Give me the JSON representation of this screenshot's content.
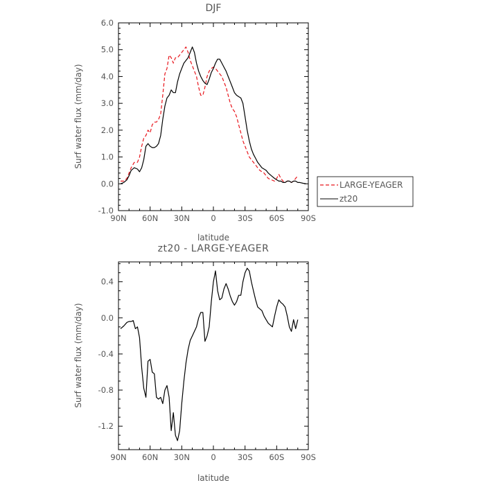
{
  "chart_data": [
    {
      "type": "line",
      "title": "DJF",
      "xlabel": "latitude",
      "ylabel": "Surf water flux (mm/day)",
      "xlim": [
        90,
        -90
      ],
      "ylim": [
        -1.0,
        6.0
      ],
      "x_ticks": [
        90,
        60,
        30,
        0,
        -30,
        -60,
        -90
      ],
      "x_tick_labels": [
        "90N",
        "60N",
        "30N",
        "0",
        "30S",
        "60S",
        "90S"
      ],
      "y_ticks": [
        -1.0,
        0.0,
        1.0,
        2.0,
        3.0,
        4.0,
        5.0,
        6.0
      ],
      "y_tick_labels": [
        "-1.0",
        "0.0",
        "1.0",
        "2.0",
        "3.0",
        "4.0",
        "5.0",
        "6.0"
      ],
      "legend_position": "right",
      "grid": false,
      "series": [
        {
          "name": "LARGE-YEAGER",
          "color": "#e8141b",
          "dash": "dashed",
          "x": [
            88,
            85,
            82,
            80,
            78,
            75,
            72,
            70,
            68,
            66,
            64,
            62,
            60,
            58,
            56,
            54,
            52,
            50,
            48,
            46,
            44,
            42,
            40,
            38,
            36,
            34,
            32,
            30,
            28,
            26,
            24,
            22,
            20,
            18,
            16,
            14,
            12,
            10,
            8,
            6,
            4,
            2,
            0,
            -2,
            -4,
            -6,
            -8,
            -10,
            -12,
            -14,
            -16,
            -18,
            -20,
            -22,
            -24,
            -26,
            -28,
            -30,
            -32,
            -34,
            -36,
            -38,
            -40,
            -42,
            -44,
            -46,
            -48,
            -50,
            -52,
            -55,
            -58,
            -60,
            -62,
            -64,
            -66,
            -68,
            -70,
            -72,
            -74,
            -76,
            -78,
            -80
          ],
          "y": [
            0.1,
            0.1,
            0.2,
            0.4,
            0.6,
            0.8,
            0.8,
            1.0,
            1.4,
            1.7,
            1.8,
            2.0,
            1.9,
            2.2,
            2.3,
            2.3,
            2.4,
            2.6,
            3.3,
            4.1,
            4.3,
            4.8,
            4.7,
            4.5,
            4.7,
            4.7,
            4.8,
            4.9,
            5.0,
            5.1,
            4.9,
            4.6,
            4.4,
            4.2,
            4.0,
            3.6,
            3.3,
            3.3,
            3.6,
            4.0,
            4.2,
            4.3,
            4.35,
            4.3,
            4.2,
            4.1,
            4.0,
            3.8,
            3.6,
            3.3,
            3.0,
            2.8,
            2.7,
            2.5,
            2.2,
            1.9,
            1.6,
            1.4,
            1.2,
            1.0,
            0.9,
            0.8,
            0.7,
            0.6,
            0.5,
            0.45,
            0.4,
            0.3,
            0.2,
            0.15,
            0.1,
            0.2,
            0.35,
            0.2,
            0.1,
            0.05,
            0.1,
            0.1,
            0.05,
            0.1,
            0.2,
            0.3
          ]
        },
        {
          "name": "zt20",
          "color": "#000000",
          "dash": "solid",
          "x": [
            88,
            85,
            82,
            80,
            78,
            75,
            72,
            70,
            68,
            66,
            64,
            62,
            60,
            58,
            56,
            54,
            52,
            50,
            48,
            46,
            44,
            42,
            40,
            38,
            36,
            34,
            32,
            30,
            28,
            26,
            24,
            22,
            20,
            18,
            16,
            14,
            12,
            10,
            8,
            6,
            4,
            2,
            0,
            -2,
            -4,
            -6,
            -8,
            -10,
            -12,
            -14,
            -16,
            -18,
            -20,
            -22,
            -24,
            -26,
            -28,
            -30,
            -32,
            -34,
            -36,
            -38,
            -40,
            -42,
            -44,
            -46,
            -48,
            -50,
            -52,
            -55,
            -58,
            -60,
            -62,
            -64,
            -66,
            -68,
            -70,
            -72,
            -74,
            -76,
            -78,
            -80,
            -82,
            -85,
            -88
          ],
          "y": [
            0.0,
            0.05,
            0.15,
            0.3,
            0.5,
            0.6,
            0.55,
            0.45,
            0.6,
            0.9,
            1.4,
            1.5,
            1.4,
            1.35,
            1.35,
            1.4,
            1.5,
            1.8,
            2.4,
            2.9,
            3.2,
            3.3,
            3.5,
            3.4,
            3.4,
            3.8,
            4.1,
            4.3,
            4.5,
            4.6,
            4.7,
            4.9,
            5.1,
            4.9,
            4.5,
            4.2,
            4.0,
            3.85,
            3.75,
            3.7,
            3.9,
            4.15,
            4.3,
            4.5,
            4.65,
            4.65,
            4.5,
            4.35,
            4.2,
            4.0,
            3.8,
            3.6,
            3.4,
            3.3,
            3.25,
            3.2,
            3.0,
            2.5,
            2.0,
            1.6,
            1.3,
            1.1,
            0.95,
            0.8,
            0.7,
            0.6,
            0.55,
            0.5,
            0.4,
            0.3,
            0.2,
            0.15,
            0.1,
            0.1,
            0.05,
            0.05,
            0.1,
            0.1,
            0.05,
            0.1,
            0.1,
            0.05,
            0.05,
            0.02,
            0.0
          ]
        }
      ]
    },
    {
      "type": "line",
      "title": "zt20 - LARGE-YEAGER",
      "xlabel": "latitude",
      "ylabel": "Surf water flux (mm/day)",
      "xlim": [
        90,
        -90
      ],
      "ylim": [
        -1.46,
        0.62
      ],
      "x_ticks": [
        90,
        60,
        30,
        0,
        -30,
        -60,
        -90
      ],
      "x_tick_labels": [
        "90N",
        "60N",
        "30N",
        "0",
        "30S",
        "60S",
        "90S"
      ],
      "y_ticks": [
        -1.2,
        -0.8,
        -0.4,
        0.0,
        0.4
      ],
      "y_tick_labels": [
        "-1.2",
        "-0.8",
        "-0.4",
        "0.0",
        "0.4"
      ],
      "grid": false,
      "series": [
        {
          "color": "#000000",
          "dash": "solid",
          "x": [
            88,
            85,
            82,
            80,
            78,
            76,
            74,
            72,
            70,
            68,
            66,
            64,
            62,
            60,
            58,
            56,
            54,
            52,
            50,
            48,
            46,
            44,
            42,
            40,
            38,
            36,
            34,
            32,
            30,
            28,
            26,
            24,
            22,
            20,
            18,
            16,
            14,
            12,
            10,
            8,
            6,
            4,
            2,
            0,
            -2,
            -4,
            -6,
            -8,
            -10,
            -12,
            -14,
            -16,
            -18,
            -20,
            -22,
            -24,
            -26,
            -28,
            -30,
            -32,
            -34,
            -36,
            -38,
            -40,
            -42,
            -44,
            -46,
            -48,
            -50,
            -52,
            -54,
            -56,
            -58,
            -60,
            -62,
            -64,
            -66,
            -68,
            -70,
            -72,
            -74,
            -76,
            -78,
            -80
          ],
          "y": [
            -0.12,
            -0.09,
            -0.05,
            -0.04,
            -0.04,
            -0.03,
            -0.12,
            -0.1,
            -0.22,
            -0.55,
            -0.78,
            -0.88,
            -0.48,
            -0.46,
            -0.6,
            -0.62,
            -0.88,
            -0.9,
            -0.88,
            -0.95,
            -0.8,
            -0.75,
            -0.88,
            -1.25,
            -1.05,
            -1.3,
            -1.36,
            -1.25,
            -0.95,
            -0.7,
            -0.5,
            -0.35,
            -0.25,
            -0.2,
            -0.15,
            -0.1,
            0.0,
            0.06,
            0.06,
            -0.26,
            -0.2,
            -0.1,
            0.18,
            0.4,
            0.52,
            0.3,
            0.2,
            0.22,
            0.32,
            0.38,
            0.32,
            0.24,
            0.18,
            0.14,
            0.18,
            0.25,
            0.25,
            0.4,
            0.5,
            0.55,
            0.52,
            0.4,
            0.3,
            0.2,
            0.12,
            0.1,
            0.08,
            0.02,
            -0.02,
            -0.06,
            -0.08,
            -0.1,
            0.02,
            0.12,
            0.2,
            0.17,
            0.15,
            0.12,
            0.02,
            -0.1,
            -0.15,
            -0.02,
            -0.12,
            -0.02
          ]
        }
      ]
    }
  ]
}
